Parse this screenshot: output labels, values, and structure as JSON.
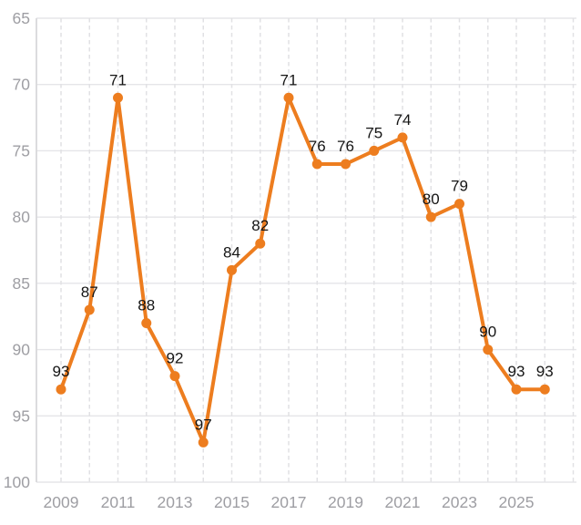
{
  "chart_data": {
    "type": "line",
    "title": "",
    "xlabel": "",
    "ylabel": "",
    "x": [
      2009,
      2010,
      2011,
      2012,
      2013,
      2014,
      2015,
      2016,
      2017,
      2018,
      2019,
      2020,
      2021,
      2022,
      2023,
      2024,
      2025,
      2026
    ],
    "values": [
      93,
      87,
      71,
      88,
      92,
      97,
      84,
      82,
      71,
      76,
      76,
      75,
      74,
      80,
      79,
      90,
      93,
      93
    ],
    "point_labels": [
      "93",
      "87",
      "71",
      "88",
      "92",
      "97",
      "84",
      "82",
      "71",
      "76",
      "76",
      "75",
      "74",
      "80",
      "79",
      "90",
      "93",
      "93"
    ],
    "y_axis": {
      "ticks": [
        65,
        70,
        75,
        80,
        85,
        90,
        95,
        100
      ],
      "tick_labels": [
        "65",
        "70",
        "75",
        "80",
        "85",
        "90",
        "95",
        "100"
      ],
      "ylim": [
        65,
        100
      ],
      "inverted": true
    },
    "x_axis": {
      "tick_years": [
        2009,
        2011,
        2013,
        2015,
        2017,
        2019,
        2021,
        2023,
        2025
      ],
      "tick_labels": [
        "2009",
        "2011",
        "2013",
        "2015",
        "2017",
        "2019",
        "2021",
        "2023",
        "2025"
      ],
      "grid_years": [
        2009,
        2010,
        2011,
        2012,
        2013,
        2014,
        2015,
        2016,
        2017,
        2018,
        2019,
        2020,
        2021,
        2022,
        2023,
        2024,
        2025,
        2026,
        2027
      ]
    },
    "grid": "on",
    "legend_position": "none",
    "colors": {
      "line": "#ED7D1F",
      "marker": "#ED7D1F",
      "h_grid": "#E5E5E8",
      "v_grid": "#E1E1E4",
      "axis_line": "#D8D8DB",
      "axis_tick_text": "#9E9EA3",
      "data_label_text": "#141414",
      "background": "#FFFFFF"
    }
  }
}
